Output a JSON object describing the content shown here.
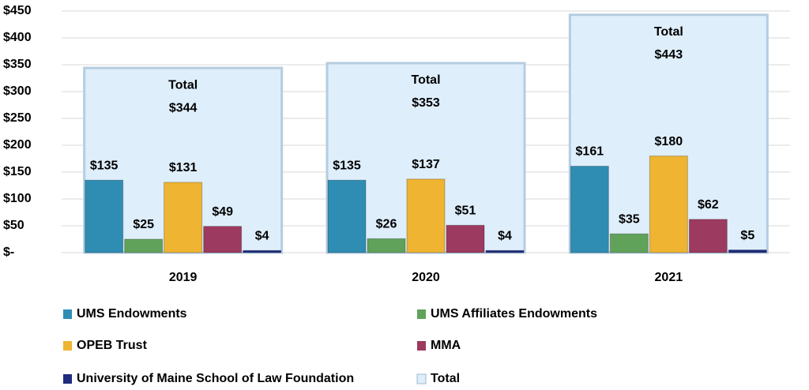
{
  "chart_data": {
    "type": "bar",
    "categories": [
      "2019",
      "2020",
      "2021"
    ],
    "series": [
      {
        "name": "UMS Endowments",
        "color": "#2f8db3",
        "values": [
          135,
          135,
          161
        ],
        "value_labels": [
          "$135",
          "$135",
          "$161"
        ]
      },
      {
        "name": "UMS Affiliates Endowments",
        "color": "#61a25a",
        "values": [
          25,
          26,
          35
        ],
        "value_labels": [
          "$25",
          "$26",
          "$35"
        ]
      },
      {
        "name": "OPEB Trust",
        "color": "#efb431",
        "values": [
          131,
          137,
          180
        ],
        "value_labels": [
          "$131",
          "$137",
          "$180"
        ]
      },
      {
        "name": "MMA",
        "color": "#9d3a5f",
        "values": [
          49,
          51,
          62
        ],
        "value_labels": [
          "$49",
          "$51",
          "$62"
        ]
      },
      {
        "name": "University of Maine School of Law Foundation",
        "color": "#1f2b7d",
        "values": [
          4,
          4,
          5
        ],
        "value_labels": [
          "$4",
          "$4",
          "$5"
        ]
      },
      {
        "name": "Total",
        "color": "#deeefb",
        "values": [
          344,
          353,
          443
        ],
        "value_labels": [
          "$344",
          "$353",
          "$443"
        ]
      }
    ],
    "ylim": [
      0,
      450
    ],
    "yticks": [
      {
        "value": 0,
        "label": "$-"
      },
      {
        "value": 50,
        "label": "$50"
      },
      {
        "value": 100,
        "label": "$100"
      },
      {
        "value": 150,
        "label": "$150"
      },
      {
        "value": 200,
        "label": "$200"
      },
      {
        "value": 250,
        "label": "$250"
      },
      {
        "value": 300,
        "label": "$300"
      },
      {
        "value": 350,
        "label": "$350"
      },
      {
        "value": 400,
        "label": "$400"
      },
      {
        "value": 450,
        "label": "$450"
      }
    ],
    "grid": true
  }
}
